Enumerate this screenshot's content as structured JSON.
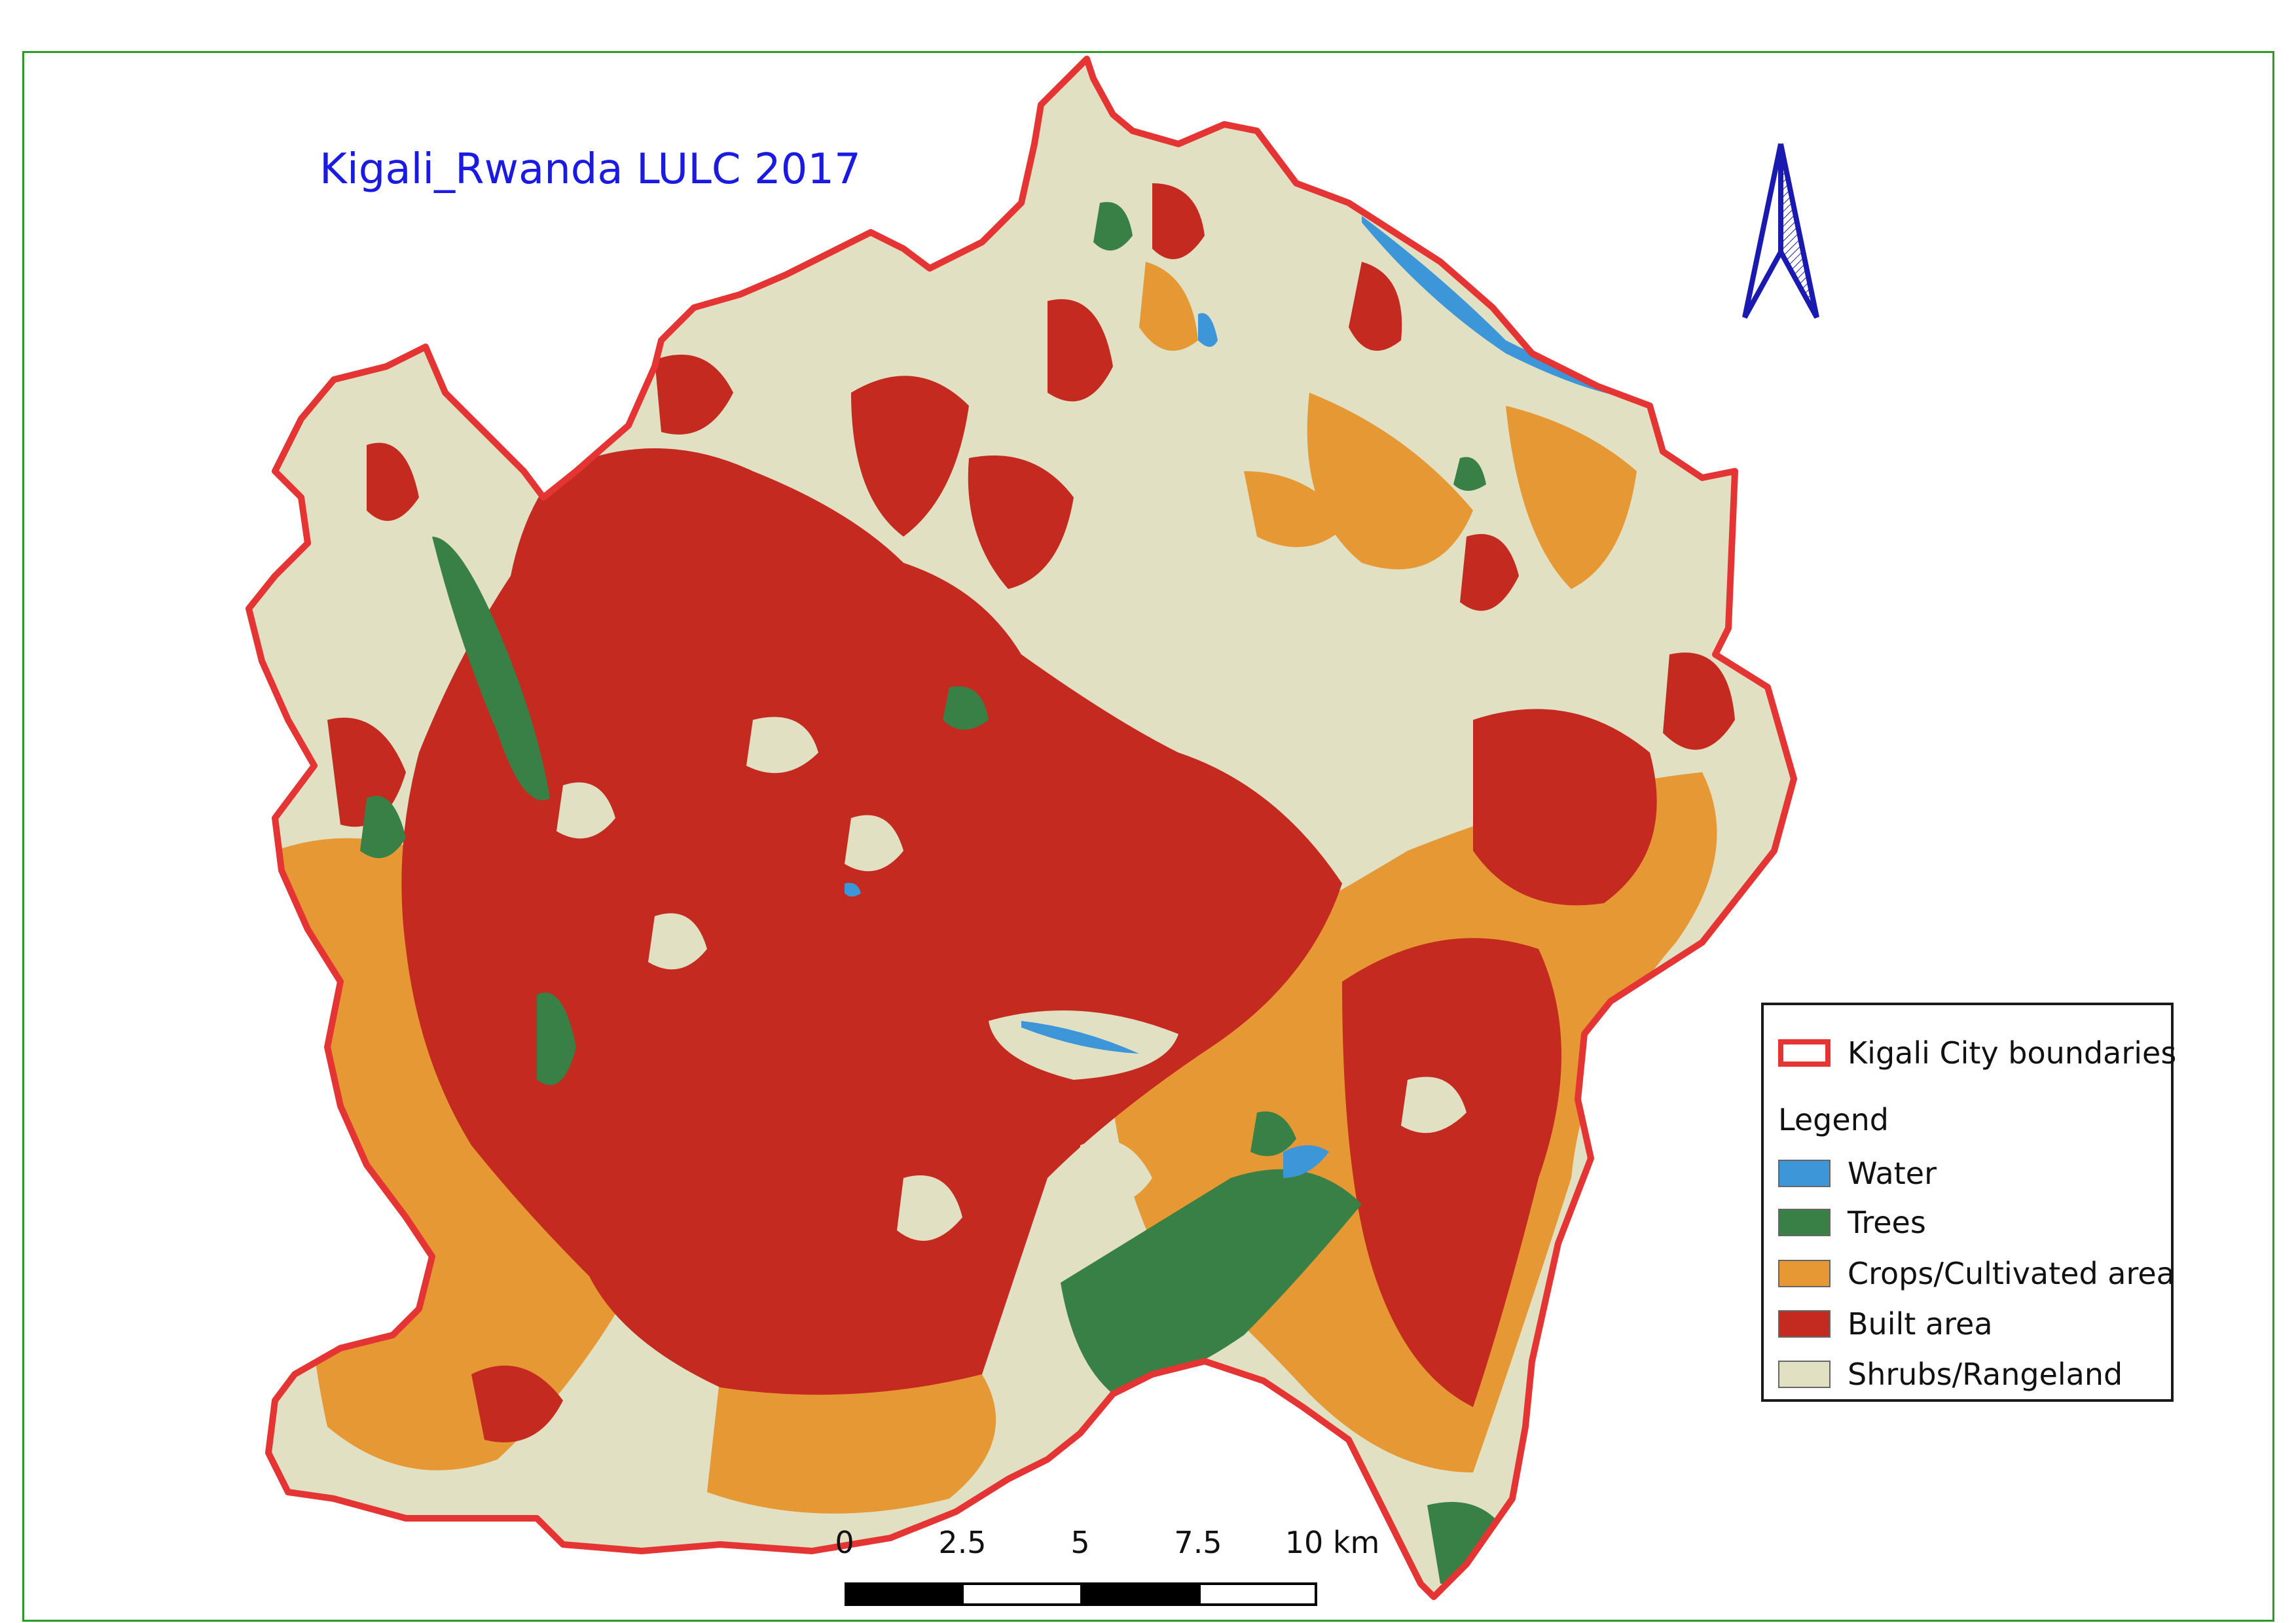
{
  "map": {
    "title": "Kigali_Rwanda LULC 2017",
    "colors": {
      "boundary": "#e43434",
      "water": "#3d96d8",
      "trees": "#388045",
      "crops": "#e59833",
      "built": "#c42a1f",
      "shrubs": "#e1e0c3"
    }
  },
  "legend": {
    "boundary_label": "Kigali City boundaries",
    "heading": "Legend",
    "items": [
      {
        "label": "Water",
        "color": "#3d96d8"
      },
      {
        "label": "Trees",
        "color": "#388045"
      },
      {
        "label": "Crops/Cultivated area",
        "color": "#e59833"
      },
      {
        "label": "Built area",
        "color": "#c42a1f"
      },
      {
        "label": "Shrubs/Rangeland",
        "color": "#e1e0c3"
      }
    ]
  },
  "scalebar": {
    "labels": [
      "0",
      "2.5",
      "5",
      "7.5",
      "10 km"
    ]
  },
  "north_arrow": {
    "icon": "north-arrow-icon"
  }
}
